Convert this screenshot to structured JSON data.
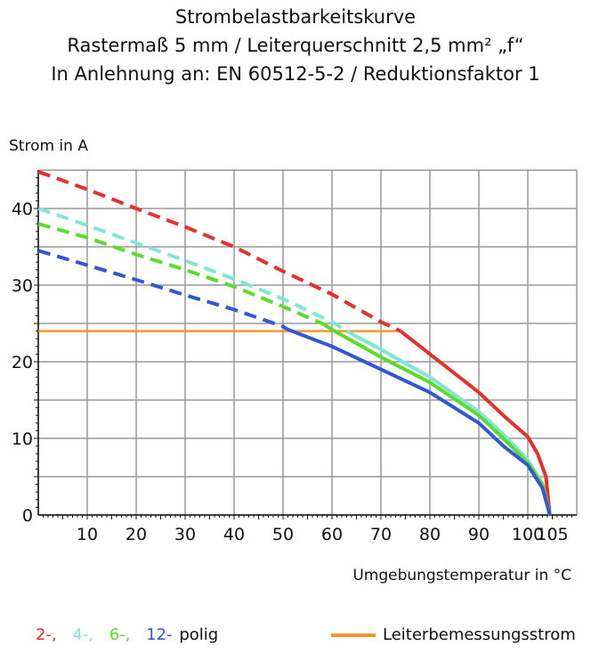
{
  "chart_data": {
    "type": "line",
    "title": "Strombelastbarkeitskurve",
    "subtitle": [
      "Rastermaß 5 mm / Leiterquerschnitt 2,5 mm² „f“",
      "In Anlehnung an: EN 60512-5-2 / Reduktionsfaktor 1"
    ],
    "xlabel": "Umgebungstemperatur in °C",
    "ylabel": "Strom in A",
    "xlim": [
      0,
      110
    ],
    "ylim": [
      0,
      45
    ],
    "xticks": [
      10,
      20,
      30,
      40,
      50,
      60,
      70,
      80,
      90,
      100,
      105
    ],
    "yticks": [
      0,
      10,
      20,
      30,
      40
    ],
    "grid": true,
    "series": [
      {
        "name": "2-",
        "color": "#e8302a",
        "dashed": [
          [
            0,
            44.8
          ],
          [
            10,
            42.5
          ],
          [
            20,
            40
          ],
          [
            30,
            37.6
          ],
          [
            40,
            35
          ],
          [
            50,
            31.8
          ],
          [
            60,
            28.8
          ],
          [
            70,
            25.2
          ],
          [
            74,
            24
          ]
        ],
        "solid": [
          [
            74,
            24
          ],
          [
            80,
            21
          ],
          [
            86,
            18
          ],
          [
            90,
            16
          ],
          [
            95,
            13
          ],
          [
            100,
            10.2
          ],
          [
            102,
            8
          ],
          [
            103.7,
            5
          ],
          [
            104.5,
            0
          ]
        ]
      },
      {
        "name": "4-",
        "color": "#80e6d6",
        "dashed": [
          [
            0,
            40
          ],
          [
            10,
            37.8
          ],
          [
            20,
            35.5
          ],
          [
            30,
            33.2
          ],
          [
            40,
            30.8
          ],
          [
            50,
            28.2
          ],
          [
            60,
            25.2
          ],
          [
            63,
            24
          ]
        ],
        "solid": [
          [
            63,
            24
          ],
          [
            70,
            21.6
          ],
          [
            80,
            18
          ],
          [
            90,
            13.5
          ],
          [
            95,
            10.5
          ],
          [
            100,
            7.2
          ],
          [
            103,
            4
          ],
          [
            104.5,
            0
          ]
        ]
      },
      {
        "name": "6-",
        "color": "#5cdc2a",
        "dashed": [
          [
            0,
            38
          ],
          [
            10,
            36.2
          ],
          [
            20,
            34
          ],
          [
            30,
            32
          ],
          [
            40,
            29.8
          ],
          [
            50,
            27.2
          ],
          [
            58,
            25
          ]
        ],
        "solid": [
          [
            58,
            25
          ],
          [
            60,
            24.2
          ],
          [
            70,
            20.6
          ],
          [
            80,
            17.3
          ],
          [
            90,
            13
          ],
          [
            95,
            10
          ],
          [
            100,
            6.8
          ],
          [
            103,
            4
          ],
          [
            104.5,
            0
          ]
        ]
      },
      {
        "name": "12-",
        "color": "#2e58d8",
        "dashed": [
          [
            0,
            34.5
          ],
          [
            10,
            32.6
          ],
          [
            20,
            30.7
          ],
          [
            30,
            28.7
          ],
          [
            40,
            26.8
          ],
          [
            50,
            24.6
          ],
          [
            51,
            24.2
          ]
        ],
        "solid": [
          [
            51,
            24.2
          ],
          [
            60,
            22
          ],
          [
            70,
            19
          ],
          [
            80,
            16
          ],
          [
            90,
            12
          ],
          [
            95,
            9
          ],
          [
            100,
            6.5
          ],
          [
            103,
            3.5
          ],
          [
            104.5,
            0
          ]
        ]
      }
    ],
    "reference_line": {
      "name": "Leiterbemessungsstrom",
      "color": "#f7962c",
      "y": 24,
      "x": [
        0,
        74
      ]
    },
    "legend": {
      "placement": "bottom",
      "items": [
        "2-,",
        "4-,",
        "6-,",
        "12-"
      ],
      "suffix": "polig"
    }
  }
}
